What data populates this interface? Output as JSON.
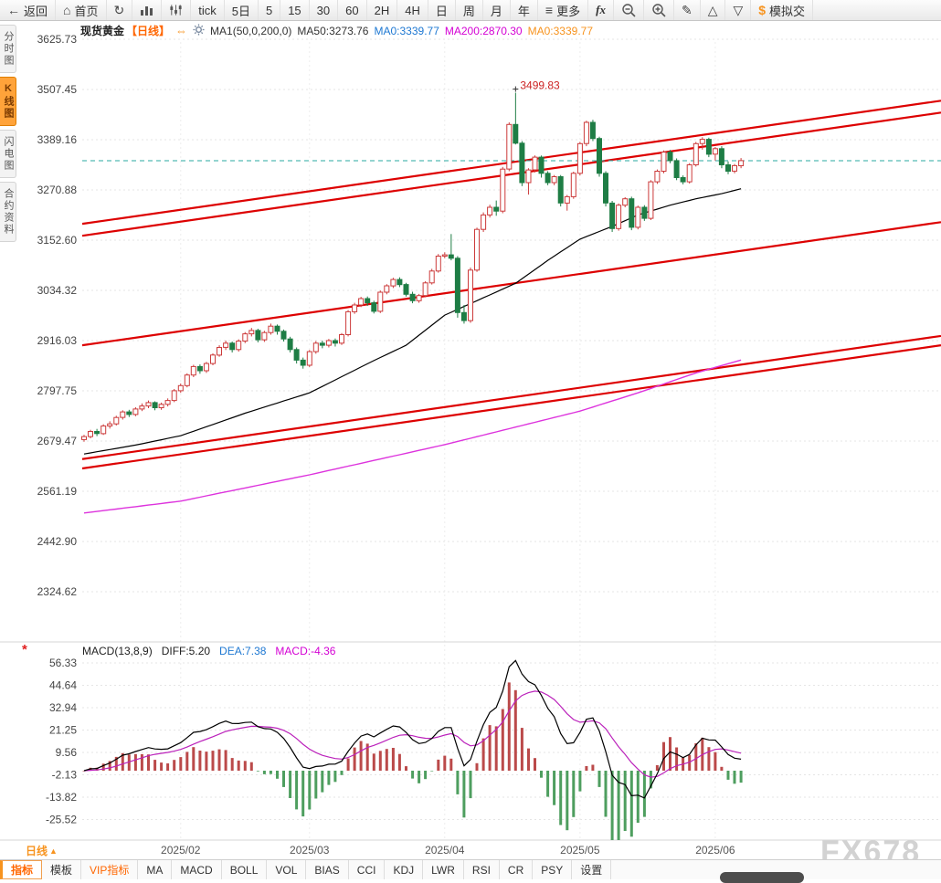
{
  "toolbar": {
    "items": [
      {
        "id": "back",
        "icon": "arrow-left",
        "label": "返回"
      },
      {
        "id": "home",
        "icon": "home",
        "label": "首页"
      },
      {
        "id": "refresh",
        "icon": "refresh"
      },
      {
        "id": "bar-chart",
        "icon": "bar-chart"
      },
      {
        "id": "chart-style",
        "icon": "equalizer"
      },
      {
        "id": "tick",
        "label": "tick"
      },
      {
        "id": "period-5d",
        "label": "5日"
      },
      {
        "id": "period-5m",
        "label": "5"
      },
      {
        "id": "period-15m",
        "label": "15"
      },
      {
        "id": "period-30m",
        "label": "30"
      },
      {
        "id": "period-60m",
        "label": "60"
      },
      {
        "id": "period-2h",
        "label": "2H"
      },
      {
        "id": "period-4h",
        "label": "4H"
      },
      {
        "id": "period-day",
        "label": "日"
      },
      {
        "id": "period-week",
        "label": "周"
      },
      {
        "id": "period-month",
        "label": "月"
      },
      {
        "id": "period-year",
        "label": "年"
      },
      {
        "id": "more",
        "icon": "menu",
        "label": "更多"
      },
      {
        "id": "fx-functions",
        "label": "fx",
        "italic": true
      },
      {
        "id": "zoom-out",
        "icon": "zoom-out"
      },
      {
        "id": "zoom-in",
        "icon": "zoom-in"
      },
      {
        "id": "draw",
        "icon": "pencil"
      },
      {
        "id": "alert-up",
        "icon": "triangle-up"
      },
      {
        "id": "alert-down",
        "icon": "triangle-down"
      },
      {
        "id": "sim-trade",
        "icon": "dollar",
        "label": "模拟交"
      }
    ]
  },
  "sidebar": {
    "tabs": [
      {
        "id": "time-chart",
        "label": "分时图",
        "active": false
      },
      {
        "id": "kline-chart",
        "label": "K线图",
        "active": true
      },
      {
        "id": "flash-chart",
        "label": "闪电图",
        "active": false
      },
      {
        "id": "contract-info",
        "label": "合约资料",
        "active": false
      }
    ]
  },
  "header": {
    "symbol": "现货黄金",
    "period_tag": "【日线】",
    "switch_icon": "⇔",
    "ma_params": "MA1(50,0,200,0)",
    "ma50": "MA50:3273.76",
    "ma0_blue": "MA0:3339.77",
    "ma200": "MA200:2870.30",
    "ma0_orange": "MA0:3339.77"
  },
  "macd_header": {
    "params": "MACD(13,8,9)",
    "diff": "DIFF:5.20",
    "dea": "DEA:7.38",
    "macd": "MACD:-4.36",
    "flower_icon": "*"
  },
  "bottom": {
    "period_selector": "日线",
    "period_arrow": "▲",
    "tabs": [
      {
        "id": "indicators",
        "label": "指标",
        "style": "active-orange"
      },
      {
        "id": "templates",
        "label": "模板",
        "style": ""
      },
      {
        "id": "vip-indicators",
        "label": "VIP指标",
        "style": "orange"
      },
      {
        "id": "ma",
        "label": "MA",
        "style": ""
      },
      {
        "id": "macd",
        "label": "MACD",
        "style": ""
      },
      {
        "id": "boll",
        "label": "BOLL",
        "style": ""
      },
      {
        "id": "vol",
        "label": "VOL",
        "style": ""
      },
      {
        "id": "bias",
        "label": "BIAS",
        "style": ""
      },
      {
        "id": "cci",
        "label": "CCI",
        "style": ""
      },
      {
        "id": "kdj",
        "label": "KDJ",
        "style": ""
      },
      {
        "id": "lwr",
        "label": "LWR",
        "style": ""
      },
      {
        "id": "rsi",
        "label": "RSI",
        "style": ""
      },
      {
        "id": "cr",
        "label": "CR",
        "style": ""
      },
      {
        "id": "psy",
        "label": "PSY",
        "style": ""
      },
      {
        "id": "settings",
        "label": "设置",
        "style": ""
      }
    ]
  },
  "watermark": "FX678",
  "chart_data": {
    "type": "candlestick",
    "title": "现货黄金 日线",
    "price_axis": {
      "labels": [
        3625.73,
        3507.45,
        3389.16,
        3270.88,
        3152.6,
        3034.32,
        2916.03,
        2797.75,
        2679.47,
        2561.19,
        2442.9,
        2324.62
      ],
      "ylim": [
        2324.62,
        3625.73
      ]
    },
    "macd_axis": {
      "labels": [
        56.33,
        44.64,
        32.94,
        21.25,
        9.56,
        -2.13,
        -13.82,
        -25.52
      ],
      "ylim": [
        -36,
        62
      ]
    },
    "x_axis": {
      "labels": [
        {
          "label": "2025/02",
          "index": 15
        },
        {
          "label": "2025/03",
          "index": 35
        },
        {
          "label": "2025/04",
          "index": 56
        },
        {
          "label": "2025/05",
          "index": 77
        },
        {
          "label": "2025/06",
          "index": 98
        }
      ]
    },
    "candles": [
      [
        2683,
        2694,
        2678,
        2690
      ],
      [
        2690,
        2706,
        2686,
        2702
      ],
      [
        2702,
        2708,
        2691,
        2697
      ],
      [
        2697,
        2719,
        2694,
        2715
      ],
      [
        2715,
        2726,
        2709,
        2720
      ],
      [
        2720,
        2739,
        2716,
        2735
      ],
      [
        2735,
        2752,
        2730,
        2748
      ],
      [
        2748,
        2753,
        2736,
        2742
      ],
      [
        2742,
        2759,
        2738,
        2755
      ],
      [
        2755,
        2768,
        2750,
        2762
      ],
      [
        2762,
        2775,
        2757,
        2770
      ],
      [
        2770,
        2773,
        2752,
        2758
      ],
      [
        2758,
        2770,
        2753,
        2766
      ],
      [
        2766,
        2780,
        2761,
        2775
      ],
      [
        2775,
        2802,
        2771,
        2798
      ],
      [
        2798,
        2815,
        2793,
        2810
      ],
      [
        2810,
        2839,
        2806,
        2835
      ],
      [
        2835,
        2859,
        2830,
        2855
      ],
      [
        2855,
        2860,
        2838,
        2845
      ],
      [
        2845,
        2866,
        2840,
        2862
      ],
      [
        2862,
        2886,
        2858,
        2882
      ],
      [
        2882,
        2905,
        2878,
        2900
      ],
      [
        2900,
        2916,
        2894,
        2910
      ],
      [
        2910,
        2914,
        2888,
        2895
      ],
      [
        2895,
        2919,
        2890,
        2915
      ],
      [
        2915,
        2936,
        2910,
        2932
      ],
      [
        2932,
        2946,
        2926,
        2940
      ],
      [
        2940,
        2944,
        2912,
        2918
      ],
      [
        2918,
        2939,
        2913,
        2935
      ],
      [
        2935,
        2956,
        2930,
        2950
      ],
      [
        2950,
        2954,
        2930,
        2938
      ],
      [
        2938,
        2942,
        2914,
        2920
      ],
      [
        2920,
        2925,
        2888,
        2895
      ],
      [
        2895,
        2900,
        2862,
        2870
      ],
      [
        2870,
        2876,
        2850,
        2858
      ],
      [
        2858,
        2894,
        2854,
        2890
      ],
      [
        2890,
        2915,
        2885,
        2910
      ],
      [
        2910,
        2916,
        2898,
        2905
      ],
      [
        2905,
        2920,
        2900,
        2916
      ],
      [
        2916,
        2921,
        2902,
        2910
      ],
      [
        2910,
        2934,
        2906,
        2930
      ],
      [
        2930,
        2988,
        2926,
        2984
      ],
      [
        2984,
        3005,
        2979,
        3000
      ],
      [
        3000,
        3019,
        2995,
        3015
      ],
      [
        3015,
        3020,
        2998,
        3005
      ],
      [
        3005,
        3010,
        2980,
        2985
      ],
      [
        2985,
        3034,
        2981,
        3030
      ],
      [
        3030,
        3049,
        3025,
        3045
      ],
      [
        3045,
        3064,
        3040,
        3060
      ],
      [
        3060,
        3065,
        3042,
        3048
      ],
      [
        3048,
        3052,
        3020,
        3025
      ],
      [
        3025,
        3031,
        3004,
        3010
      ],
      [
        3010,
        3026,
        3005,
        3022
      ],
      [
        3022,
        3056,
        3018,
        3052
      ],
      [
        3052,
        3085,
        3048,
        3080
      ],
      [
        3080,
        3120,
        3076,
        3115
      ],
      [
        3115,
        3124,
        3110,
        3118
      ],
      [
        3118,
        3167,
        3105,
        3110
      ],
      [
        3110,
        3115,
        2970,
        2982
      ],
      [
        2982,
        3000,
        2956,
        2963
      ],
      [
        2963,
        3088,
        2958,
        3082
      ],
      [
        3082,
        3182,
        3078,
        3178
      ],
      [
        3178,
        3218,
        3172,
        3212
      ],
      [
        3212,
        3236,
        3206,
        3230
      ],
      [
        3230,
        3246,
        3210,
        3221
      ],
      [
        3221,
        3325,
        3216,
        3320
      ],
      [
        3320,
        3430,
        3315,
        3425
      ],
      [
        3425,
        3499.83,
        3378,
        3381
      ],
      [
        3381,
        3386,
        3280,
        3288
      ],
      [
        3288,
        3322,
        3260,
        3318
      ],
      [
        3318,
        3352,
        3312,
        3348
      ],
      [
        3348,
        3352,
        3300,
        3310
      ],
      [
        3310,
        3315,
        3282,
        3288
      ],
      [
        3288,
        3306,
        3282,
        3302
      ],
      [
        3302,
        3306,
        3232,
        3240
      ],
      [
        3240,
        3259,
        3222,
        3255
      ],
      [
        3255,
        3314,
        3250,
        3310
      ],
      [
        3310,
        3384,
        3305,
        3380
      ],
      [
        3380,
        3434,
        3374,
        3430
      ],
      [
        3430,
        3436,
        3386,
        3392
      ],
      [
        3392,
        3396,
        3302,
        3310
      ],
      [
        3310,
        3315,
        3232,
        3240
      ],
      [
        3240,
        3245,
        3172,
        3180
      ],
      [
        3180,
        3239,
        3175,
        3235
      ],
      [
        3235,
        3254,
        3230,
        3250
      ],
      [
        3250,
        3255,
        3176,
        3183
      ],
      [
        3183,
        3234,
        3178,
        3230
      ],
      [
        3230,
        3235,
        3198,
        3204
      ],
      [
        3204,
        3294,
        3200,
        3290
      ],
      [
        3290,
        3319,
        3285,
        3315
      ],
      [
        3315,
        3364,
        3310,
        3360
      ],
      [
        3360,
        3365,
        3334,
        3340
      ],
      [
        3340,
        3345,
        3294,
        3300
      ],
      [
        3300,
        3305,
        3284,
        3290
      ],
      [
        3290,
        3334,
        3286,
        3330
      ],
      [
        3330,
        3384,
        3326,
        3380
      ],
      [
        3380,
        3395,
        3366,
        3390
      ],
      [
        3390,
        3394,
        3348,
        3355
      ],
      [
        3355,
        3372,
        3340,
        3368
      ],
      [
        3368,
        3374,
        3322,
        3330
      ],
      [
        3330,
        3338,
        3308,
        3315
      ],
      [
        3315,
        3332,
        3310,
        3328
      ],
      [
        3328,
        3346,
        3322,
        3340
      ]
    ],
    "ma50_points": [
      [
        0,
        2649
      ],
      [
        8,
        2670
      ],
      [
        15,
        2692
      ],
      [
        25,
        2745
      ],
      [
        35,
        2793
      ],
      [
        45,
        2869
      ],
      [
        50,
        2905
      ],
      [
        56,
        2976
      ],
      [
        61,
        3010
      ],
      [
        67,
        3051
      ],
      [
        72,
        3105
      ],
      [
        77,
        3155
      ],
      [
        82,
        3185
      ],
      [
        86,
        3212
      ],
      [
        91,
        3235
      ],
      [
        95,
        3250
      ],
      [
        99,
        3262
      ],
      [
        102,
        3273.76
      ]
    ],
    "ma200_points": [
      [
        0,
        2510
      ],
      [
        15,
        2538
      ],
      [
        35,
        2600
      ],
      [
        56,
        2671
      ],
      [
        77,
        2750
      ],
      [
        86,
        2793
      ],
      [
        95,
        2840
      ],
      [
        102,
        2870.3
      ]
    ],
    "trendlines": [
      {
        "p1": 3191,
        "p2": 3481
      },
      {
        "p1": 3163,
        "p2": 3453
      },
      {
        "p1": 2905,
        "p2": 3195
      },
      {
        "p1": 2637,
        "p2": 2927
      },
      {
        "p1": 2615,
        "p2": 2905
      }
    ],
    "current_price_line": 3339.77,
    "peak_annotation": {
      "text": "3499.83",
      "index": 67,
      "price": 3499.83
    },
    "macd_params": {
      "fast": 8,
      "slow": 13,
      "signal": 9
    },
    "colors": {
      "up": "#cc3a3a",
      "down": "#1e7d45",
      "trendline": "#dd0000",
      "ma50": "#000000",
      "ma200": "#dd33dd",
      "diff_line": "#000000",
      "dea_line": "#bb22bb",
      "hist_pos": "#bb4a4a",
      "hist_neg": "#4e9e5f",
      "current_price": "#2aa8a0",
      "annotation": "#cc2222",
      "grid": "#e5e5e5",
      "axis_text": "#444",
      "watermark": "#d2d2d2"
    }
  }
}
